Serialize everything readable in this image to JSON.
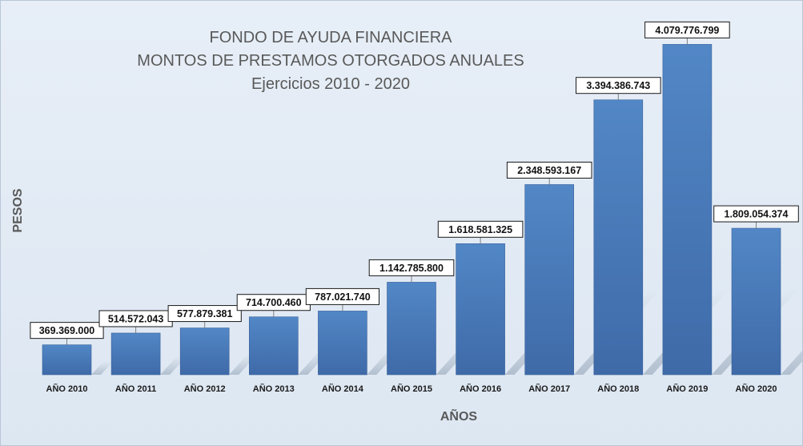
{
  "chart_data": {
    "type": "bar",
    "title": [
      "FONDO DE AYUDA FINANCIERA",
      "MONTOS DE PRESTAMOS OTORGADOS ANUALES",
      "Ejercicios 2010 - 2020"
    ],
    "xlabel": "AÑOS",
    "ylabel": "PESOS",
    "categories": [
      "AÑO 2010",
      "AÑO 2011",
      "AÑO 2012",
      "AÑO 2013",
      "AÑO 2014",
      "AÑO 2015",
      "AÑO 2016",
      "AÑO 2017",
      "AÑO 2018",
      "AÑO 2019",
      "AÑO 2020"
    ],
    "values": [
      369369000,
      514572043,
      577879381,
      714700460,
      787021740,
      1142785800,
      1618581325,
      2348593167,
      3394386743,
      4079776799,
      1809054374
    ],
    "value_labels": [
      "369.369.000",
      "514.572.043",
      "577.879.381",
      "714.700.460",
      "787.021.740",
      "1.142.785.800",
      "1.618.581.325",
      "2.348.593.167",
      "3.394.386.743",
      "4.079.776.799",
      "1.809.054.374"
    ],
    "ylim": [
      0,
      4400000000
    ],
    "grid": false,
    "legend": "none",
    "bar_color": "#4a7bbd"
  }
}
